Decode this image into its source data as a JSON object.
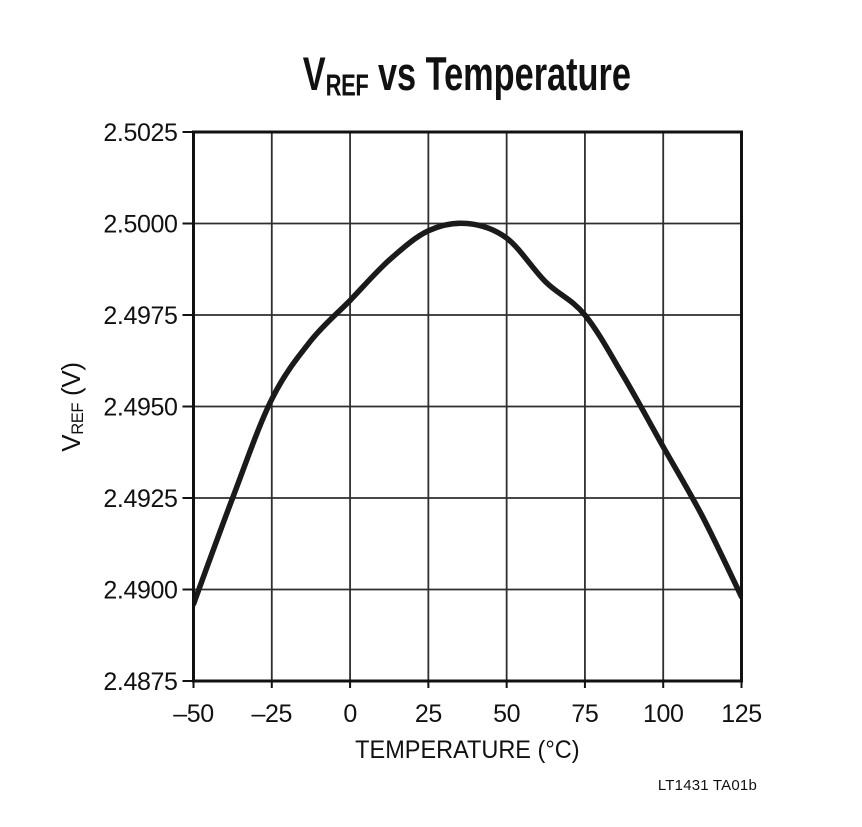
{
  "figure": {
    "title": {
      "main": "V",
      "sub": "REF",
      "rest": " vs Temperature"
    },
    "footnote": "LT1431 TA01b"
  },
  "axes": {
    "y_title": {
      "main": "V",
      "sub": "REF",
      "rest": " (V)"
    }
  },
  "chart_data": {
    "type": "line",
    "title": "VREF vs Temperature",
    "xlabel": "TEMPERATURE (°C)",
    "ylabel": "VREF (V)",
    "xlim": [
      -50,
      125
    ],
    "ylim": [
      2.4875,
      2.5025
    ],
    "grid": true,
    "legend": false,
    "line_color": "#1a1a1a",
    "x_ticks": [
      -50,
      -25,
      0,
      25,
      50,
      75,
      100,
      125
    ],
    "x_tick_labels": [
      "–50",
      "–25",
      "0",
      "25",
      "50",
      "75",
      "100",
      "125"
    ],
    "y_ticks": [
      2.5025,
      2.5,
      2.4975,
      2.495,
      2.4925,
      2.49,
      2.4875
    ],
    "y_tick_labels": [
      "2.5025",
      "2.5000",
      "2.4975",
      "2.4950",
      "2.4925",
      "2.4900",
      "2.4875"
    ],
    "series": [
      {
        "name": "VREF",
        "x": [
          -50,
          -37.5,
          -25,
          -12.5,
          0,
          12.5,
          25,
          37.5,
          50,
          62.5,
          75,
          87.5,
          100,
          112.5,
          125
        ],
        "y": [
          2.4896,
          2.4925,
          2.4952,
          2.4968,
          2.4979,
          2.499,
          2.4998,
          2.5,
          2.4996,
          2.4984,
          2.4975,
          2.4958,
          2.4939,
          2.492,
          2.4898
        ]
      }
    ]
  }
}
